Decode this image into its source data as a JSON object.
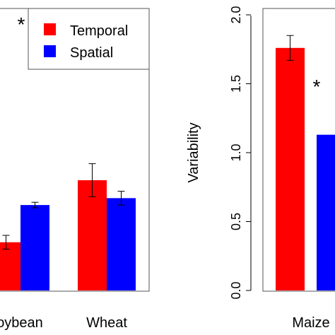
{
  "chart_data": [
    {
      "type": "bar",
      "categories": [
        "Soybean",
        "Wheat"
      ],
      "category_labels_visible": [
        "oybean",
        "Wheat"
      ],
      "series": [
        {
          "name": "Temporal",
          "color": "#ff0000",
          "values": [
            0.35,
            0.8
          ],
          "errors": [
            0.05,
            0.12
          ]
        },
        {
          "name": "Spatial",
          "color": "#0000ff",
          "values": [
            0.62,
            0.67
          ],
          "errors": [
            0.02,
            0.05
          ]
        }
      ],
      "annotation": "*",
      "legend_position": "top-right",
      "grid": false
    },
    {
      "type": "bar",
      "categories": [
        "Maize"
      ],
      "category_labels_visible": [
        "Maize"
      ],
      "ylabel": "Variability",
      "ylim": [
        0,
        2.0
      ],
      "yticks": [
        "0.0",
        "0.5",
        "1.0",
        "1.5",
        "2.0"
      ],
      "series": [
        {
          "name": "Temporal",
          "color": "#ff0000",
          "values": [
            1.76
          ],
          "errors": [
            0.09
          ]
        },
        {
          "name": "Spatial",
          "color": "#0000ff",
          "values": [
            1.13
          ],
          "errors": [
            0.0
          ]
        }
      ],
      "annotation": "*",
      "grid": false
    }
  ]
}
